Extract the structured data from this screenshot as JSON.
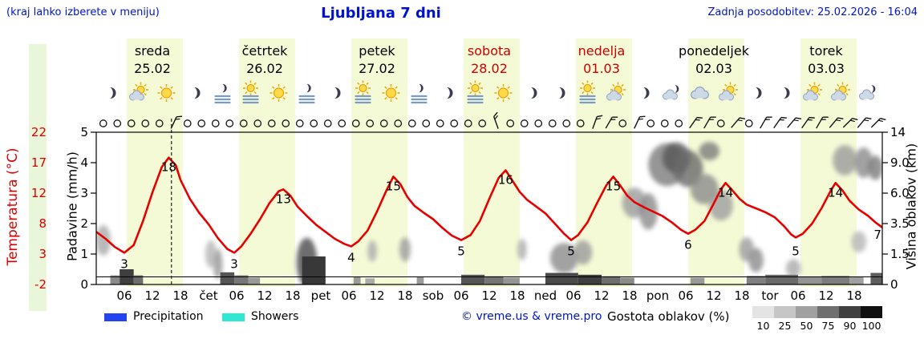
{
  "header": {
    "hint": "(kraj lahko izberete v meniju)",
    "title": "Ljubljana 7 dni",
    "updated": "Zadnja posodobitev: 25.02.2026 - 16:04"
  },
  "axes": {
    "temp_label": "Temperatura (°C)",
    "precip_label": "Padavine (mm/h)",
    "cloud_label": "Višina oblakov (km)"
  },
  "days": [
    {
      "name": "sreda",
      "date": "25.02",
      "color": "#000000"
    },
    {
      "name": "četrtek",
      "date": "26.02",
      "color": "#000000"
    },
    {
      "name": "petek",
      "date": "27.02",
      "color": "#000000"
    },
    {
      "name": "sobota",
      "date": "28.02",
      "color": "#cc0000"
    },
    {
      "name": "nedelja",
      "date": "01.03",
      "color": "#cc0000"
    },
    {
      "name": "ponedeljek",
      "date": "02.03",
      "color": "#000000"
    },
    {
      "name": "torek",
      "date": "03.03",
      "color": "#000000"
    }
  ],
  "icons": [
    "moon",
    "sun-cloud",
    "sun",
    "moon",
    "fog-moon",
    "fog-sun",
    "sun",
    "fog-moon",
    "moon",
    "fog-sun",
    "sun",
    "fog-moon",
    "moon",
    "fog-sun",
    "sun",
    "moon",
    "moon",
    "fog-sun",
    "sun-cloud",
    "moon",
    "moon-cloud",
    "cloud",
    "sun-cloud",
    "moon",
    "moon",
    "sun-cloud",
    "sun-cloud",
    "moon-cloud"
  ],
  "winds": [
    "c",
    "c",
    "c",
    "c",
    "c",
    25,
    "c",
    "c",
    "c",
    "c",
    "c",
    "c",
    "c",
    "c",
    "c",
    "c",
    "c",
    "c",
    "c",
    "c",
    "c",
    "c",
    "c",
    "c",
    "c",
    "c",
    "c",
    "c",
    -20,
    "c",
    "c",
    "c",
    "c",
    "c",
    "c",
    20,
    30,
    "c",
    25,
    "c",
    "c",
    "c",
    35,
    30,
    "c",
    40,
    "c",
    30,
    35,
    40,
    35,
    30,
    40,
    45,
    40,
    45
  ],
  "legend": {
    "precipitation": "Precipitation",
    "showers": "Showers",
    "credit": "© vreme.us & vreme.pro",
    "cloud_density": "Gostota oblakov (%)",
    "cloud_scale": [
      "10",
      "25",
      "50",
      "75",
      "90",
      "100"
    ],
    "cloud_shades": [
      "#e4e4e4",
      "#c6c6c6",
      "#a0a0a0",
      "#6f6f6f",
      "#404040",
      "#101010"
    ]
  },
  "chart_data": {
    "type": "line",
    "title": "Ljubljana 7 dni",
    "x_axis": {
      "start_label": "25.02 00:00",
      "hours_total": 168,
      "ticks": [
        {
          "h": 6,
          "label": "06"
        },
        {
          "h": 12,
          "label": "12"
        },
        {
          "h": 18,
          "label": "18"
        },
        {
          "h": 24,
          "label": "čet"
        },
        {
          "h": 30,
          "label": "06"
        },
        {
          "h": 36,
          "label": "12"
        },
        {
          "h": 42,
          "label": "18"
        },
        {
          "h": 48,
          "label": "pet"
        },
        {
          "h": 54,
          "label": "06"
        },
        {
          "h": 60,
          "label": "12"
        },
        {
          "h": 66,
          "label": "18"
        },
        {
          "h": 72,
          "label": "sob"
        },
        {
          "h": 78,
          "label": "06"
        },
        {
          "h": 84,
          "label": "12"
        },
        {
          "h": 90,
          "label": "18"
        },
        {
          "h": 96,
          "label": "ned"
        },
        {
          "h": 102,
          "label": "06"
        },
        {
          "h": 108,
          "label": "12"
        },
        {
          "h": 114,
          "label": "18"
        },
        {
          "h": 120,
          "label": "pon"
        },
        {
          "h": 126,
          "label": "06"
        },
        {
          "h": 132,
          "label": "12"
        },
        {
          "h": 138,
          "label": "18"
        },
        {
          "h": 144,
          "label": "tor"
        },
        {
          "h": 150,
          "label": "06"
        },
        {
          "h": 156,
          "label": "12"
        },
        {
          "h": 162,
          "label": "18"
        }
      ]
    },
    "y_left_temp": {
      "label": "Temperatura (°C)",
      "range": [
        -2,
        22
      ],
      "ticks": [
        "22",
        "17",
        "12",
        "8",
        "3",
        "-2"
      ]
    },
    "y_left_precip": {
      "label": "Padavine (mm/h)",
      "range": [
        0,
        5
      ],
      "ticks": [
        "5",
        "4",
        "3",
        "2",
        "1",
        "0"
      ]
    },
    "y_right_cloud": {
      "label": "Višina oblakov (km)",
      "tick_km": [
        0,
        1.5,
        3.5,
        6,
        9,
        14
      ],
      "ticks": [
        "14",
        "9.0",
        "6.0",
        "3.5",
        "1.5",
        "0"
      ]
    },
    "now_hour": 16.07,
    "series": [
      {
        "name": "Temperatura",
        "color": "#e60000",
        "points": [
          [
            0,
            6.3
          ],
          [
            2,
            5.2
          ],
          [
            4,
            3.9
          ],
          [
            6,
            3
          ],
          [
            8,
            4.2
          ],
          [
            10,
            8
          ],
          [
            12,
            12.5
          ],
          [
            14,
            16.5
          ],
          [
            15.5,
            18
          ],
          [
            17,
            16.8
          ],
          [
            18,
            14.5
          ],
          [
            20,
            11.5
          ],
          [
            22,
            9.3
          ],
          [
            24,
            7.5
          ],
          [
            26,
            5.3
          ],
          [
            28,
            3.6
          ],
          [
            29.5,
            3
          ],
          [
            31,
            4
          ],
          [
            33,
            6
          ],
          [
            35,
            8.3
          ],
          [
            37,
            10.8
          ],
          [
            39,
            12.7
          ],
          [
            40,
            13
          ],
          [
            41.5,
            12
          ],
          [
            43,
            10.3
          ],
          [
            45,
            8.8
          ],
          [
            47,
            7.4
          ],
          [
            49,
            6.3
          ],
          [
            51,
            5.2
          ],
          [
            53,
            4.4
          ],
          [
            54.5,
            4
          ],
          [
            56,
            4.8
          ],
          [
            58,
            6.5
          ],
          [
            60,
            9.5
          ],
          [
            62,
            12.8
          ],
          [
            63.5,
            15
          ],
          [
            65,
            13.8
          ],
          [
            66.5,
            11.8
          ],
          [
            68,
            10.4
          ],
          [
            70,
            9.3
          ],
          [
            72,
            8.3
          ],
          [
            74,
            6.9
          ],
          [
            76,
            5.7
          ],
          [
            78,
            5
          ],
          [
            80,
            5.8
          ],
          [
            82,
            8
          ],
          [
            84,
            11.5
          ],
          [
            86,
            14.8
          ],
          [
            87.5,
            16
          ],
          [
            89,
            14.3
          ],
          [
            90.5,
            12.6
          ],
          [
            92,
            11.4
          ],
          [
            94,
            10.3
          ],
          [
            96,
            9.2
          ],
          [
            98,
            7.6
          ],
          [
            100,
            6
          ],
          [
            101.5,
            5
          ],
          [
            103,
            5.8
          ],
          [
            105,
            7.8
          ],
          [
            107,
            10.8
          ],
          [
            109,
            13.6
          ],
          [
            110.5,
            15
          ],
          [
            112,
            13.6
          ],
          [
            113.5,
            12
          ],
          [
            115,
            11
          ],
          [
            117,
            10.2
          ],
          [
            119,
            9.5
          ],
          [
            121,
            8.8
          ],
          [
            123,
            7.8
          ],
          [
            125,
            6.6
          ],
          [
            126.5,
            6
          ],
          [
            128,
            6.6
          ],
          [
            130,
            8
          ],
          [
            132,
            10.8
          ],
          [
            133.5,
            13
          ],
          [
            134.5,
            14
          ],
          [
            136,
            12.8
          ],
          [
            137.5,
            11.5
          ],
          [
            139,
            10.6
          ],
          [
            141,
            10
          ],
          [
            143,
            9.4
          ],
          [
            145,
            8.6
          ],
          [
            147,
            7.2
          ],
          [
            148.5,
            5.9
          ],
          [
            149.5,
            5.4
          ],
          [
            151,
            6
          ],
          [
            153,
            7.6
          ],
          [
            155,
            10
          ],
          [
            157,
            12.8
          ],
          [
            158,
            14
          ],
          [
            159.5,
            12.8
          ],
          [
            161,
            11.2
          ],
          [
            163,
            9.8
          ],
          [
            165,
            8.8
          ],
          [
            166.5,
            7.8
          ],
          [
            168,
            7
          ]
        ]
      }
    ],
    "point_labels": [
      {
        "text": "3",
        "h": 6,
        "t": 3,
        "dy": 19
      },
      {
        "text": "18",
        "h": 15.5,
        "t": 18,
        "dy": 17
      },
      {
        "text": "3",
        "h": 29.5,
        "t": 3,
        "dy": 19
      },
      {
        "text": "13",
        "h": 40,
        "t": 13,
        "dy": 17
      },
      {
        "text": "4",
        "h": 54.5,
        "t": 4,
        "dy": 19
      },
      {
        "text": "15",
        "h": 63.5,
        "t": 15,
        "dy": 17
      },
      {
        "text": "5",
        "h": 78,
        "t": 5,
        "dy": 19
      },
      {
        "text": "16",
        "h": 87.5,
        "t": 16,
        "dy": 17
      },
      {
        "text": "5",
        "h": 101.5,
        "t": 5,
        "dy": 19
      },
      {
        "text": "15",
        "h": 110.5,
        "t": 15,
        "dy": 17
      },
      {
        "text": "6",
        "h": 126.5,
        "t": 6,
        "dy": 19
      },
      {
        "text": "14",
        "h": 134.5,
        "t": 14,
        "dy": 17
      },
      {
        "text": "5",
        "h": 149.5,
        "t": 5,
        "dy": 19
      },
      {
        "text": "14",
        "h": 158,
        "t": 14,
        "dy": 17
      },
      {
        "text": "7",
        "h": 167,
        "t": 7,
        "dy": 14
      }
    ],
    "precip_bars": [
      [
        3,
        2,
        0.3,
        "#8a8a8a"
      ],
      [
        5,
        3,
        0.5,
        "#3f3f3f"
      ],
      [
        8,
        2,
        0.3,
        "#6e6e6e"
      ],
      [
        26.5,
        3,
        0.4,
        "#555555"
      ],
      [
        29.5,
        3,
        0.3,
        "#777777"
      ],
      [
        32.5,
        2.5,
        0.22,
        "#999999"
      ],
      [
        44,
        5,
        0.92,
        "#383838"
      ],
      [
        55,
        1.5,
        0.25,
        "#9a9a9a"
      ],
      [
        57.5,
        2,
        0.2,
        "#ababab"
      ],
      [
        68.5,
        1.5,
        0.25,
        "#9a9a9a"
      ],
      [
        78,
        5,
        0.32,
        "#565656"
      ],
      [
        83,
        4,
        0.27,
        "#757575"
      ],
      [
        87,
        3.5,
        0.22,
        "#959595"
      ],
      [
        96,
        7,
        0.38,
        "#4a4a4a"
      ],
      [
        103,
        5,
        0.32,
        "#3f3f3f"
      ],
      [
        108,
        4,
        0.27,
        "#6e6e6e"
      ],
      [
        112,
        3,
        0.22,
        "#8a8a8a"
      ],
      [
        127,
        3,
        0.22,
        "#999999"
      ],
      [
        139,
        4,
        0.28,
        "#808080"
      ],
      [
        143,
        7,
        0.32,
        "#6a6a6a"
      ],
      [
        150,
        5,
        0.26,
        "#939393"
      ],
      [
        155,
        6,
        0.28,
        "#7d7d7d"
      ],
      [
        161,
        3,
        0.24,
        "#a0a0a0"
      ],
      [
        165.5,
        2.5,
        0.38,
        "#5e5e5e"
      ]
    ],
    "clouds": [
      [
        1.5,
        2.4,
        1.6,
        0.5,
        "#a8a8a8"
      ],
      [
        24.5,
        1.5,
        1.2,
        0.45,
        "#b5b5b5"
      ],
      [
        26,
        1.0,
        1.0,
        0.5,
        "#979797"
      ],
      [
        45,
        1.1,
        2.2,
        0.8,
        "#4a4a4a"
      ],
      [
        59,
        1.7,
        1.0,
        0.35,
        "#ababab"
      ],
      [
        66,
        1.8,
        1.2,
        0.4,
        "#9b9b9b"
      ],
      [
        91,
        1.8,
        1.0,
        0.35,
        "#ababab"
      ],
      [
        100,
        1.3,
        3.0,
        0.5,
        "#8b8b8b"
      ],
      [
        104,
        1.6,
        2.0,
        0.4,
        "#9b9b9b"
      ],
      [
        115,
        5.2,
        2.6,
        0.5,
        "#9b9b9b"
      ],
      [
        118,
        4.5,
        2.0,
        0.6,
        "#8b8b8b"
      ],
      [
        122,
        8.8,
        4.0,
        0.7,
        "#7b7b7b"
      ],
      [
        124,
        9.8,
        3.0,
        0.5,
        "#565656"
      ],
      [
        126.5,
        8.4,
        3.2,
        0.6,
        "#6a6a6a"
      ],
      [
        130,
        6.4,
        3.0,
        0.5,
        "#8b8b8b"
      ],
      [
        133.5,
        5.0,
        2.6,
        0.5,
        "#9e9e9e"
      ],
      [
        131,
        10.9,
        2.2,
        0.3,
        "#7b7b7b"
      ],
      [
        139,
        1.8,
        1.6,
        0.4,
        "#9b9b9b"
      ],
      [
        141,
        1.2,
        1.6,
        0.4,
        "#8b8b8b"
      ],
      [
        149,
        0.8,
        1.6,
        0.3,
        "#ababab"
      ],
      [
        160,
        9.4,
        2.6,
        0.5,
        "#9b9b9b"
      ],
      [
        164,
        9.0,
        2.0,
        0.5,
        "#8b8b8b"
      ],
      [
        166.5,
        8.5,
        1.6,
        0.4,
        "#7b7b7b"
      ],
      [
        163,
        2.3,
        1.6,
        0.35,
        "#b5b5b5"
      ]
    ]
  }
}
